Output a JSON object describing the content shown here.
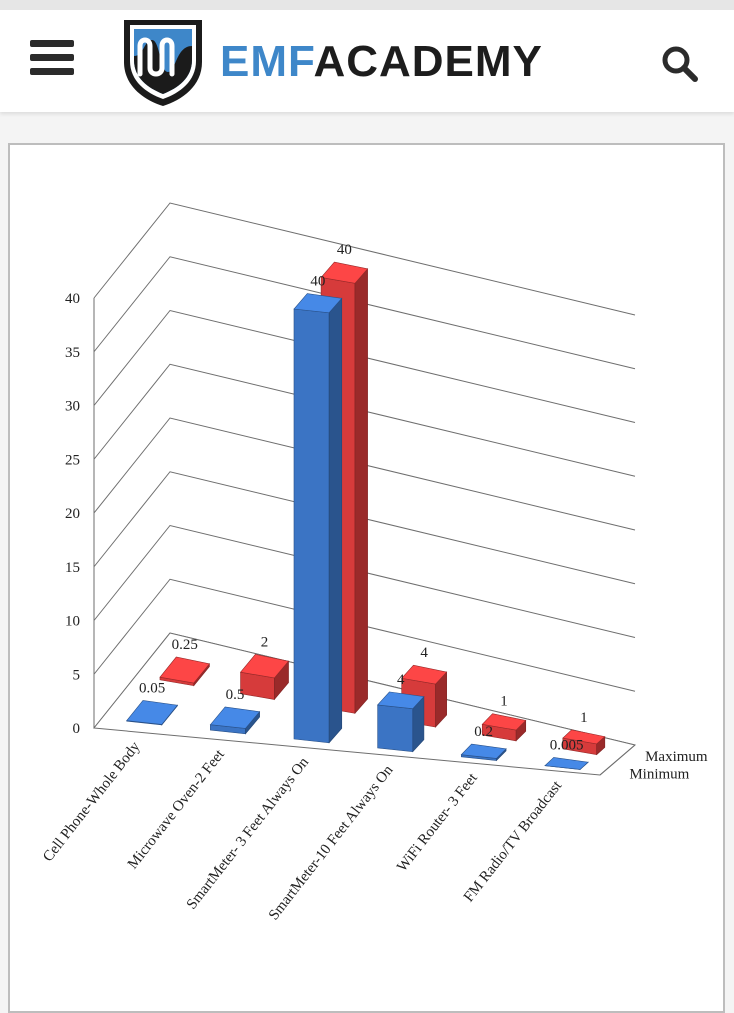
{
  "header": {
    "brand_part1": "EMF",
    "brand_part2": "ACADEMY",
    "menu_icon": "hamburger-menu-icon",
    "search_icon": "search-icon",
    "accent_color": "#3e87c9"
  },
  "chart_data": {
    "type": "bar",
    "style": "3d-clustered",
    "title": "",
    "xlabel": "",
    "ylabel": "",
    "ylim": [
      0,
      40
    ],
    "yticks": [
      "0",
      "5",
      "10",
      "15",
      "20",
      "25",
      "30",
      "35",
      "40"
    ],
    "categories": [
      "Cell Phone-Whole Body",
      "Microwave Oven-2 Feet",
      "SmartMeter- 3 Feet Always On",
      "SmartMeter-10 Feet Always On",
      "WiFi Router- 3 Feet",
      "FM Radio/TV Broadcast"
    ],
    "series": [
      {
        "name": "Minimum",
        "color": "#3b74c4",
        "values": [
          0.05,
          0.5,
          40,
          4,
          0.2,
          0.005
        ],
        "labels": [
          "0.05",
          "0.5",
          "40",
          "4",
          "0.2",
          "0.005"
        ]
      },
      {
        "name": "Maximum",
        "color": "#d63b3b",
        "values": [
          0.25,
          2,
          40,
          4,
          1,
          1
        ],
        "labels": [
          "0.25",
          "2",
          "40",
          "4",
          "1",
          "1"
        ]
      }
    ],
    "grid": true,
    "legend": "depth-axis-right"
  }
}
